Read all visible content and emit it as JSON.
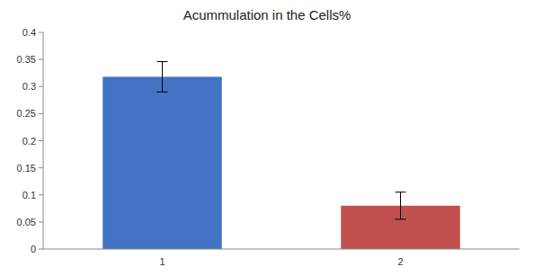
{
  "chart_data": {
    "type": "bar",
    "title": "Acummulation in the Cells%",
    "categories": [
      "1",
      "2"
    ],
    "values": [
      0.318,
      0.08
    ],
    "errors": [
      0.028,
      0.025
    ],
    "colors": [
      "#4472C4",
      "#C0504D"
    ],
    "ylim": [
      0,
      0.4
    ],
    "yticks": [
      0,
      0.05,
      0.1,
      0.15,
      0.2,
      0.25,
      0.3,
      0.35,
      0.4
    ],
    "grid": false
  }
}
